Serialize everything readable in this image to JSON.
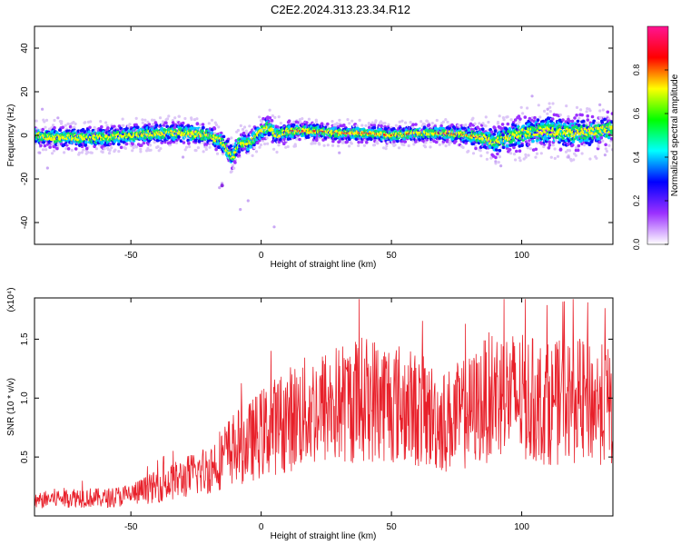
{
  "title": "C2E2.2024.313.23.34.R12",
  "chart_data": [
    {
      "type": "heatmap",
      "title": "C2E2.2024.313.23.34.R12",
      "xlabel": "Height of straight line (km)",
      "ylabel": "Frequency (Hz)",
      "xlim": [
        -87,
        135
      ],
      "ylim": [
        -50,
        50
      ],
      "xticks": [
        "-50",
        "0",
        "50",
        "100"
      ],
      "yticks": [
        "40",
        "20",
        "0",
        "-20",
        "-40"
      ],
      "colorbar": {
        "label": "Normalized spectral amplitude",
        "range": [
          0,
          1
        ],
        "ticks": [
          "0.0",
          "0.2",
          "0.4",
          "0.6",
          "0.8"
        ],
        "colors": [
          "#ffffff",
          "#9b30ff",
          "#0000ff",
          "#00ffff",
          "#00ff00",
          "#ffff00",
          "#ff0000",
          "#ff1493"
        ]
      },
      "ridge": {
        "x": [
          -87,
          -80,
          -70,
          -60,
          -50,
          -40,
          -30,
          -20,
          -15,
          -11,
          -8,
          -5,
          0,
          3,
          6,
          10,
          20,
          30,
          40,
          50,
          60,
          70,
          80,
          85,
          90,
          95,
          100,
          110,
          120,
          130,
          135
        ],
        "freq": [
          0,
          -1,
          -1,
          -1,
          0,
          1,
          1,
          0,
          -3,
          -10,
          -3,
          -4,
          2,
          4,
          0,
          2,
          2,
          1,
          1,
          0,
          1,
          1,
          0,
          -1,
          -3,
          -1,
          1,
          2,
          1,
          2,
          3
        ],
        "spread": [
          5,
          5,
          5,
          5,
          5,
          5,
          5,
          5,
          5,
          6,
          5,
          5,
          5,
          5,
          5,
          5,
          4,
          4,
          4,
          4,
          4,
          4,
          5,
          6,
          7,
          7,
          8,
          8,
          8,
          8,
          8
        ]
      },
      "grid": false
    },
    {
      "type": "line",
      "xlabel": "Height of straight line (km)",
      "ylabel": "SNR (10 * v/v)",
      "y_multiplier": "(x10⁴)",
      "xlim": [
        -87,
        135
      ],
      "ylim": [
        0,
        1.85
      ],
      "xticks": [
        "-50",
        "0",
        "50",
        "100"
      ],
      "yticks": [
        "0.5",
        "1.0",
        "1.5"
      ],
      "color": "#e8202a",
      "series": [
        {
          "x": [
            -87,
            -80,
            -70,
            -60,
            -50,
            -40,
            -30,
            -20,
            -15,
            -10,
            -5,
            0,
            10,
            20,
            30,
            40,
            50,
            60,
            70,
            80,
            90,
            100,
            110,
            120,
            130,
            135
          ],
          "y": [
            0.12,
            0.15,
            0.16,
            0.15,
            0.18,
            0.25,
            0.32,
            0.4,
            0.5,
            0.58,
            0.62,
            0.7,
            0.82,
            0.9,
            0.95,
            1.0,
            0.98,
            0.9,
            0.8,
            0.88,
            1.05,
            1.0,
            0.95,
            0.98,
            0.95,
            0.92
          ]
        }
      ],
      "grid": false
    }
  ]
}
